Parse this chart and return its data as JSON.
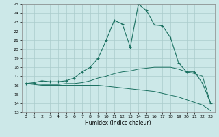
{
  "title": "",
  "xlabel": "Humidex (Indice chaleur)",
  "ylabel": "",
  "bg_color": "#cce8e8",
  "grid_color": "#aacccc",
  "line_color": "#1a7060",
  "xlim": [
    -0.5,
    23.5
  ],
  "ylim": [
    13,
    25
  ],
  "yticks": [
    13,
    14,
    15,
    16,
    17,
    18,
    19,
    20,
    21,
    22,
    23,
    24,
    25
  ],
  "xticks": [
    0,
    1,
    2,
    3,
    4,
    5,
    6,
    7,
    8,
    9,
    10,
    11,
    12,
    13,
    14,
    15,
    16,
    17,
    18,
    19,
    20,
    21,
    22,
    23
  ],
  "curve1_x": [
    0,
    1,
    2,
    3,
    4,
    5,
    6,
    7,
    8,
    9,
    10,
    11,
    12,
    13,
    14,
    15,
    16,
    17,
    18,
    19,
    20,
    21,
    22,
    23
  ],
  "curve1_y": [
    16.2,
    16.3,
    16.5,
    16.4,
    16.4,
    16.5,
    16.8,
    17.5,
    18.0,
    19.0,
    21.0,
    23.2,
    22.8,
    20.2,
    25.0,
    24.3,
    22.7,
    22.6,
    21.3,
    18.5,
    17.5,
    17.5,
    16.2,
    14.0
  ],
  "curve2_x": [
    0,
    1,
    2,
    3,
    4,
    5,
    6,
    7,
    8,
    9,
    10,
    11,
    12,
    13,
    14,
    15,
    16,
    17,
    18,
    19,
    20,
    21,
    22,
    23
  ],
  "curve2_y": [
    16.2,
    16.2,
    16.1,
    16.1,
    16.1,
    16.2,
    16.2,
    16.3,
    16.5,
    16.8,
    17.0,
    17.3,
    17.5,
    17.6,
    17.8,
    17.9,
    18.0,
    18.0,
    18.0,
    17.8,
    17.5,
    17.3,
    17.0,
    14.0
  ],
  "curve3_x": [
    0,
    1,
    2,
    3,
    4,
    5,
    6,
    7,
    8,
    9,
    10,
    11,
    12,
    13,
    14,
    15,
    16,
    17,
    18,
    19,
    20,
    21,
    22,
    23
  ],
  "curve3_y": [
    16.2,
    16.1,
    16.0,
    16.0,
    16.0,
    16.0,
    16.0,
    16.0,
    16.0,
    16.0,
    15.9,
    15.8,
    15.7,
    15.6,
    15.5,
    15.4,
    15.3,
    15.1,
    14.9,
    14.7,
    14.4,
    14.1,
    13.8,
    13.2
  ]
}
